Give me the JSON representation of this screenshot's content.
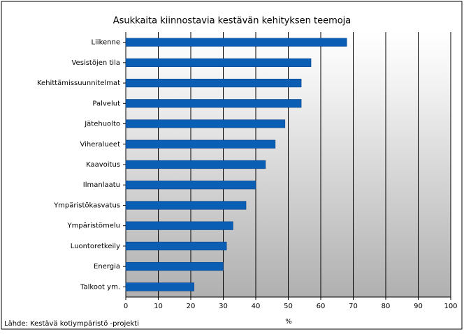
{
  "chart_data": {
    "type": "hbar",
    "title": "Asukkaita kiinnostavia kestävän kehityksen teemoja",
    "categories": [
      "Liikenne",
      "Vesistöjen tila",
      "Kehittämissuunnitelmat",
      "Palvelut",
      "Jätehuolto",
      "Viheralueet",
      "Kaavoitus",
      "Ilmanlaatu",
      "Ympäristökasvatus",
      "Ympäristömelu",
      "Luontoretkeily",
      "Energia",
      "Talkoot ym."
    ],
    "values": [
      68,
      57,
      54,
      54,
      49,
      46,
      43,
      40,
      37,
      33,
      31,
      30,
      21
    ],
    "color": "#0a5fb4",
    "xlabel": "%",
    "xlim": [
      0,
      100
    ],
    "xticks": [
      0,
      10,
      20,
      30,
      40,
      50,
      60,
      70,
      80,
      90,
      100
    ],
    "grid": true,
    "source": "Lähde: Kestävä kotiympäristö -projekti"
  }
}
